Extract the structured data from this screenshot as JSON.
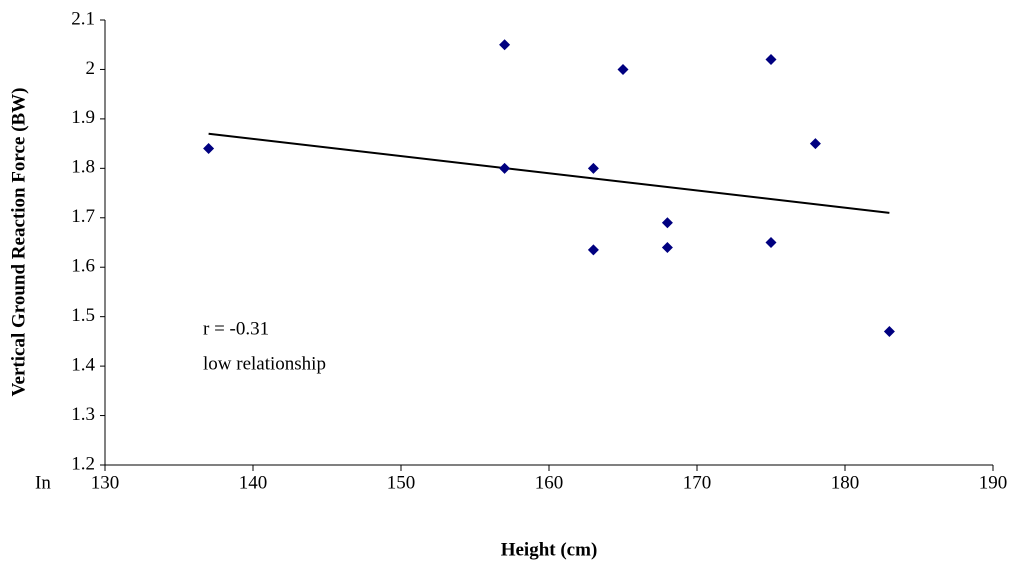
{
  "chart_data": {
    "type": "scatter",
    "x_label": "Height (cm)",
    "y_label": "Vertical Ground Reaction Force (BW)",
    "series": [
      {
        "color": "#000080",
        "x": [
          137,
          157,
          157,
          163,
          163,
          165,
          168,
          168,
          175,
          175,
          178,
          183
        ],
        "values": [
          1.84,
          2.05,
          1.8,
          1.8,
          1.635,
          2.0,
          1.69,
          1.64,
          2.02,
          1.65,
          1.85,
          1.47
        ]
      }
    ],
    "trendline": {
      "color": "#000000",
      "x": [
        137,
        183
      ],
      "values": [
        1.87,
        1.71
      ]
    },
    "annotations": [
      "r = -0.31",
      "low relationship",
      "In"
    ],
    "xlim": [
      130,
      190
    ],
    "xticks": [
      130,
      140,
      150,
      160,
      170,
      180,
      190
    ],
    "ylim": [
      1.2,
      2.1
    ],
    "yticks": [
      1.2,
      1.3,
      1.4,
      1.5,
      1.6,
      1.7,
      1.8,
      1.9,
      2,
      2.1
    ],
    "grid": false
  }
}
